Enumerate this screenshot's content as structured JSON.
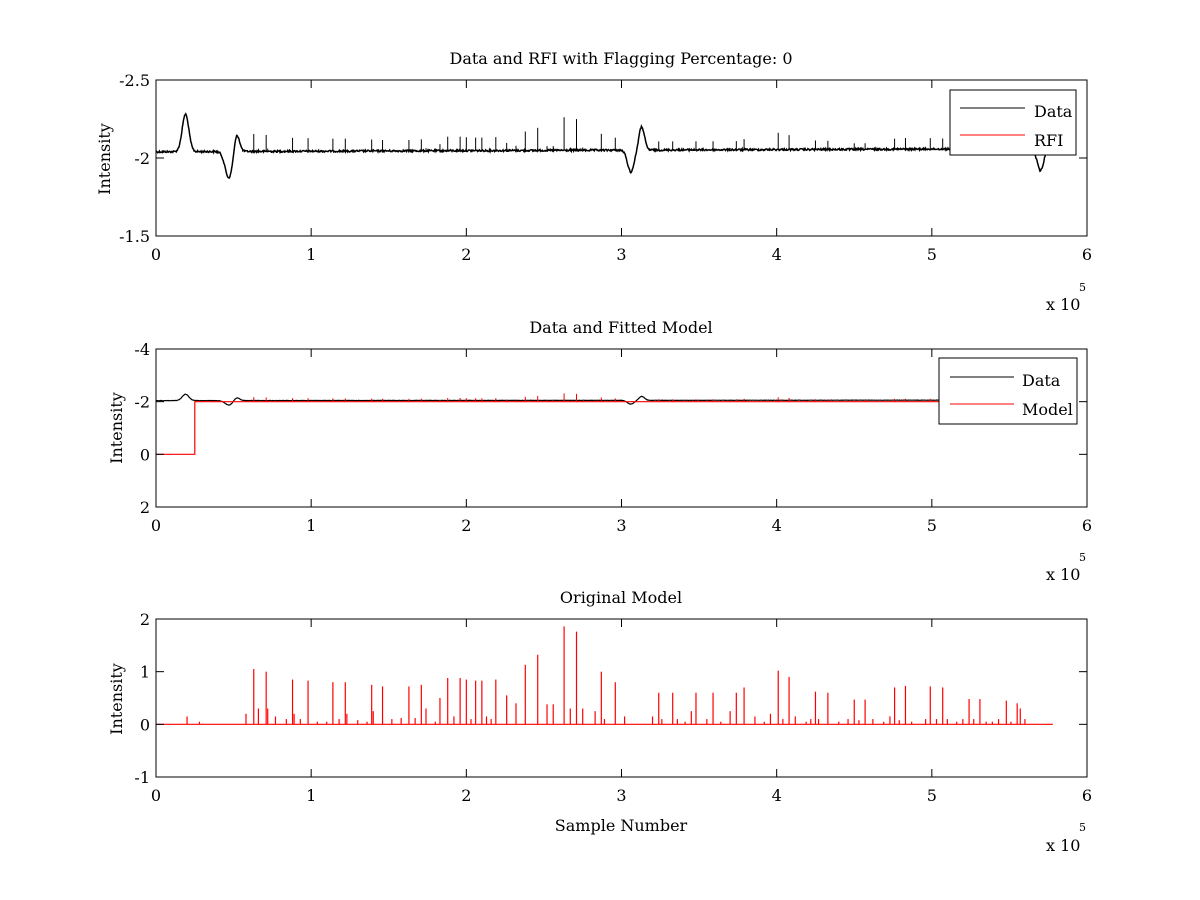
{
  "figure": {
    "background": "#ffffff"
  },
  "colors": {
    "data": "#000000",
    "rfi": "#ff0000",
    "model": "#ff0000",
    "axes": "#000000"
  },
  "chart_data": [
    {
      "type": "line",
      "title": "Data and RFI with Flagging Percentage: 0",
      "xlabel": "",
      "ylabel": "Intensity",
      "xlim": [
        0,
        600000
      ],
      "ylim": [
        -2.5,
        -1.5
      ],
      "y_reversed": true,
      "xticks": [
        0,
        100000,
        200000,
        300000,
        400000,
        500000,
        600000
      ],
      "xtick_labels": [
        "0",
        "1",
        "2",
        "3",
        "4",
        "5",
        "6"
      ],
      "yticks": [
        -2.5,
        -2,
        -1.5
      ],
      "ytick_labels": [
        "-2.5",
        "-2",
        "-1.5"
      ],
      "x_exponent": {
        "base": "x 10",
        "power": "5"
      },
      "legend": {
        "position": "top-right",
        "entries": [
          "Data",
          "RFI"
        ]
      },
      "series": [
        {
          "name": "Data",
          "color": "#000000",
          "baseline": -2.04,
          "baseline_end": -2.06,
          "x_end": 578000,
          "features": [
            {
              "x": 19000,
              "dy": -0.24,
              "width": 3000
            },
            {
              "x": 47000,
              "dy": 0.17,
              "width": 3500
            },
            {
              "x": 52000,
              "dy": -0.12,
              "width": 2500
            },
            {
              "x": 306000,
              "dy": 0.14,
              "width": 3000
            },
            {
              "x": 313000,
              "dy": -0.15,
              "width": 2500
            },
            {
              "x": 570000,
              "dy": 0.14,
              "width": 3000
            },
            {
              "x": 576000,
              "dy": -0.08,
              "width": 2000
            }
          ]
        },
        {
          "name": "RFI",
          "color": "#ff0000",
          "x": [],
          "y": []
        }
      ]
    },
    {
      "type": "line",
      "title": "Data and Fitted Model",
      "xlabel": "",
      "ylabel": "Intensity",
      "xlim": [
        0,
        600000
      ],
      "ylim": [
        -4,
        2
      ],
      "y_reversed": true,
      "xticks": [
        0,
        100000,
        200000,
        300000,
        400000,
        500000,
        600000
      ],
      "xtick_labels": [
        "0",
        "1",
        "2",
        "3",
        "4",
        "5",
        "6"
      ],
      "yticks": [
        -4,
        -2,
        0,
        2
      ],
      "ytick_labels": [
        "-4",
        "-2",
        "0",
        "2"
      ],
      "x_exponent": {
        "base": "x 10",
        "power": "5"
      },
      "legend": {
        "position": "top-right",
        "entries": [
          "Data",
          "Model"
        ]
      },
      "series": [
        {
          "name": "Data",
          "color": "#000000"
        },
        {
          "name": "Model",
          "color": "#ff0000",
          "x": [
            0,
            25000,
            25000,
            578000
          ],
          "y": [
            0,
            0,
            -2,
            -2
          ]
        }
      ]
    },
    {
      "type": "line",
      "title": "Original Model",
      "xlabel": "Sample Number",
      "ylabel": "Intensity",
      "xlim": [
        0,
        600000
      ],
      "ylim": [
        -1,
        2
      ],
      "xticks": [
        0,
        100000,
        200000,
        300000,
        400000,
        500000,
        600000
      ],
      "xtick_labels": [
        "0",
        "1",
        "2",
        "3",
        "4",
        "5",
        "6"
      ],
      "yticks": [
        -1,
        0,
        1,
        2
      ],
      "ytick_labels": [
        "-1",
        "0",
        "1",
        "2"
      ],
      "x_exponent": {
        "base": "x 10",
        "power": "5"
      },
      "series": [
        {
          "name": "Model",
          "color": "#ff0000",
          "x_end": 578000,
          "spikes": [
            [
              20000,
              0.15
            ],
            [
              28000,
              0.05
            ],
            [
              58000,
              0.2
            ],
            [
              63000,
              1.05
            ],
            [
              66000,
              0.3
            ],
            [
              71000,
              1.0
            ],
            [
              72000,
              0.3
            ],
            [
              77000,
              0.15
            ],
            [
              84000,
              0.1
            ],
            [
              88000,
              0.85
            ],
            [
              89000,
              0.2
            ],
            [
              93000,
              0.1
            ],
            [
              98000,
              0.83
            ],
            [
              104000,
              0.05
            ],
            [
              110000,
              0.05
            ],
            [
              114000,
              0.8
            ],
            [
              118000,
              0.1
            ],
            [
              122000,
              0.8
            ],
            [
              123000,
              0.2
            ],
            [
              130000,
              0.08
            ],
            [
              136000,
              0.05
            ],
            [
              139000,
              0.75
            ],
            [
              140000,
              0.25
            ],
            [
              146000,
              0.72
            ],
            [
              152000,
              0.1
            ],
            [
              158000,
              0.12
            ],
            [
              163000,
              0.72
            ],
            [
              167000,
              0.12
            ],
            [
              171000,
              0.75
            ],
            [
              174000,
              0.3
            ],
            [
              180000,
              0.05
            ],
            [
              183000,
              0.5
            ],
            [
              188000,
              0.88
            ],
            [
              192000,
              0.15
            ],
            [
              196000,
              0.88
            ],
            [
              200000,
              0.85
            ],
            [
              203000,
              0.1
            ],
            [
              206000,
              0.83
            ],
            [
              210000,
              0.83
            ],
            [
              213000,
              0.15
            ],
            [
              216000,
              0.1
            ],
            [
              219000,
              0.85
            ],
            [
              226000,
              0.55
            ],
            [
              232000,
              0.4
            ],
            [
              238000,
              1.13
            ],
            [
              246000,
              1.32
            ],
            [
              252000,
              0.38
            ],
            [
              256000,
              0.38
            ],
            [
              263000,
              1.86
            ],
            [
              267000,
              0.3
            ],
            [
              271000,
              1.76
            ],
            [
              275000,
              0.3
            ],
            [
              283000,
              0.25
            ],
            [
              287000,
              1.0
            ],
            [
              289000,
              0.1
            ],
            [
              296000,
              0.8
            ],
            [
              302000,
              0.15
            ],
            [
              320000,
              0.15
            ],
            [
              324000,
              0.6
            ],
            [
              326000,
              0.1
            ],
            [
              333000,
              0.6
            ],
            [
              336000,
              0.1
            ],
            [
              341000,
              0.05
            ],
            [
              345000,
              0.25
            ],
            [
              348000,
              0.6
            ],
            [
              355000,
              0.1
            ],
            [
              359000,
              0.6
            ],
            [
              364000,
              0.05
            ],
            [
              370000,
              0.25
            ],
            [
              374000,
              0.6
            ],
            [
              379000,
              0.7
            ],
            [
              386000,
              0.15
            ],
            [
              392000,
              0.05
            ],
            [
              396000,
              0.2
            ],
            [
              401000,
              1.02
            ],
            [
              404000,
              0.1
            ],
            [
              408000,
              0.9
            ],
            [
              412000,
              0.15
            ],
            [
              419000,
              0.05
            ],
            [
              422000,
              0.1
            ],
            [
              425000,
              0.62
            ],
            [
              427000,
              0.1
            ],
            [
              433000,
              0.6
            ],
            [
              440000,
              0.05
            ],
            [
              446000,
              0.1
            ],
            [
              450000,
              0.47
            ],
            [
              453000,
              0.08
            ],
            [
              457000,
              0.47
            ],
            [
              462000,
              0.1
            ],
            [
              469000,
              0.05
            ],
            [
              473000,
              0.15
            ],
            [
              476000,
              0.7
            ],
            [
              479000,
              0.08
            ],
            [
              483000,
              0.73
            ],
            [
              487000,
              0.05
            ],
            [
              496000,
              0.1
            ],
            [
              499000,
              0.72
            ],
            [
              503000,
              0.1
            ],
            [
              507000,
              0.7
            ],
            [
              510000,
              0.1
            ],
            [
              516000,
              0.05
            ],
            [
              520000,
              0.1
            ],
            [
              524000,
              0.48
            ],
            [
              527000,
              0.1
            ],
            [
              531000,
              0.48
            ],
            [
              535000,
              0.05
            ],
            [
              539000,
              0.05
            ],
            [
              543000,
              0.1
            ],
            [
              548000,
              0.45
            ],
            [
              551000,
              0.05
            ],
            [
              555000,
              0.4
            ],
            [
              557000,
              0.3
            ],
            [
              560000,
              0.1
            ]
          ]
        }
      ]
    }
  ]
}
